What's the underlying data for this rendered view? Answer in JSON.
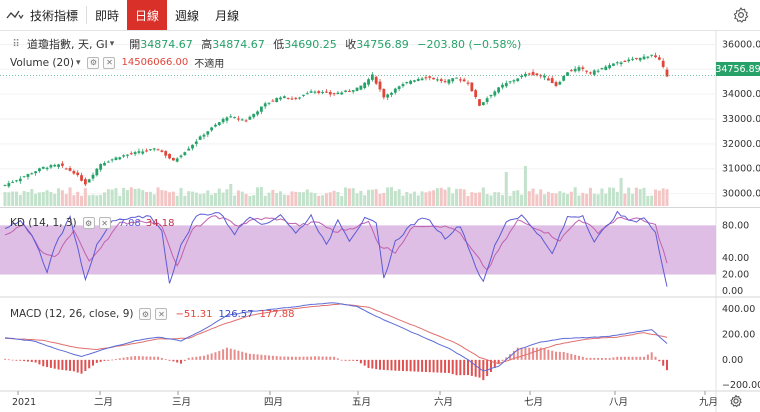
{
  "toolbar": {
    "indicator_label": "技術指標",
    "timeframes": [
      {
        "label": "即時",
        "active": false
      },
      {
        "label": "日線",
        "active": true
      },
      {
        "label": "週線",
        "active": false
      },
      {
        "label": "月線",
        "active": false
      }
    ]
  },
  "symbol": {
    "label": "道瓊指數, 天, GI",
    "open_label": "開",
    "open": "34874.67",
    "high_label": "高",
    "high": "34874.67",
    "low_label": "低",
    "low": "34690.25",
    "close_label": "收",
    "close": "34756.89",
    "change": "−203.80 (−0.58%)",
    "last_price_tag": "34756.89"
  },
  "volume": {
    "label": "Volume (20)",
    "value": "14506066.00",
    "ma_value": "不適用"
  },
  "kd": {
    "label": "KD (14, 1, 3)",
    "k": "7.08",
    "d": "34.18"
  },
  "macd": {
    "label": "MACD (12, 26, close, 9)",
    "hist": "−51.31",
    "macd": "126.57",
    "signal": "177.88"
  },
  "colors": {
    "up": "#26a269",
    "down": "#e0453a",
    "k_line": "#5b5bd6",
    "d_line": "#c060b0",
    "kd_band": "#d8b3e0",
    "macd_line": "#5b6bd6",
    "signal_line": "#e07070",
    "vol_up": "#bfe0c8",
    "vol_down": "#f3c2c2",
    "active_tab": "#d9302a"
  },
  "icons": {
    "indicator": "indicator-wave-icon",
    "settings": "gear-icon",
    "hide": "eye-icon",
    "remove": "close-icon"
  },
  "chart_data": {
    "type": "candlestick",
    "price_axis": {
      "ticks": [
        "36000.00",
        "35000.00",
        "34000.00",
        "33000.00",
        "32000.00",
        "31000.00",
        "30000.00"
      ],
      "range": [
        29500,
        36300
      ]
    },
    "kd_axis": {
      "ticks": [
        "80.00",
        "40.00",
        "20.00",
        "0.00"
      ],
      "range": [
        -5,
        100
      ],
      "band": [
        20,
        80
      ]
    },
    "macd_axis": {
      "ticks": [
        "400.00",
        "200.00",
        "0.00",
        "−200.00"
      ],
      "range": [
        -230,
        480
      ]
    },
    "time_axis": [
      "2021",
      "二月",
      "三月",
      "四月",
      "五月",
      "六月",
      "七月",
      "八月",
      "九月"
    ],
    "close_anchors": [
      [
        0,
        30350
      ],
      [
        5,
        30700
      ],
      [
        10,
        31050
      ],
      [
        14,
        31150
      ],
      [
        18,
        30850
      ],
      [
        21,
        30400
      ],
      [
        25,
        31200
      ],
      [
        30,
        31500
      ],
      [
        36,
        31700
      ],
      [
        40,
        31800
      ],
      [
        44,
        31300
      ],
      [
        47,
        31700
      ],
      [
        52,
        32400
      ],
      [
        58,
        33100
      ],
      [
        63,
        32950
      ],
      [
        68,
        33600
      ],
      [
        72,
        33900
      ],
      [
        76,
        33800
      ],
      [
        80,
        34150
      ],
      [
        85,
        34000
      ],
      [
        89,
        34100
      ],
      [
        93,
        34300
      ],
      [
        96,
        34750
      ],
      [
        99,
        33900
      ],
      [
        102,
        34200
      ],
      [
        106,
        34550
      ],
      [
        110,
        34700
      ],
      [
        115,
        34500
      ],
      [
        118,
        34650
      ],
      [
        121,
        34450
      ],
      [
        124,
        33550
      ],
      [
        127,
        34000
      ],
      [
        130,
        34350
      ],
      [
        134,
        34650
      ],
      [
        137,
        34850
      ],
      [
        141,
        34700
      ],
      [
        144,
        34350
      ],
      [
        147,
        34900
      ],
      [
        150,
        35050
      ],
      [
        153,
        34850
      ],
      [
        157,
        35100
      ],
      [
        161,
        35300
      ],
      [
        166,
        35450
      ],
      [
        169,
        35600
      ],
      [
        171,
        35350
      ],
      [
        173,
        34756
      ]
    ],
    "kd_k_anchors": [
      [
        0,
        75
      ],
      [
        4,
        86
      ],
      [
        8,
        60
      ],
      [
        11,
        22
      ],
      [
        13,
        55
      ],
      [
        17,
        90
      ],
      [
        21,
        15
      ],
      [
        24,
        55
      ],
      [
        28,
        85
      ],
      [
        33,
        88
      ],
      [
        38,
        92
      ],
      [
        41,
        72
      ],
      [
        43,
        10
      ],
      [
        46,
        55
      ],
      [
        50,
        92
      ],
      [
        56,
        96
      ],
      [
        60,
        70
      ],
      [
        64,
        92
      ],
      [
        68,
        80
      ],
      [
        72,
        94
      ],
      [
        76,
        70
      ],
      [
        80,
        92
      ],
      [
        84,
        55
      ],
      [
        87,
        88
      ],
      [
        90,
        62
      ],
      [
        94,
        88
      ],
      [
        97,
        82
      ],
      [
        99,
        15
      ],
      [
        102,
        60
      ],
      [
        106,
        80
      ],
      [
        110,
        90
      ],
      [
        115,
        65
      ],
      [
        119,
        80
      ],
      [
        123,
        30
      ],
      [
        125,
        10
      ],
      [
        128,
        55
      ],
      [
        131,
        85
      ],
      [
        135,
        92
      ],
      [
        139,
        72
      ],
      [
        143,
        45
      ],
      [
        147,
        90
      ],
      [
        151,
        92
      ],
      [
        154,
        60
      ],
      [
        157,
        78
      ],
      [
        160,
        95
      ],
      [
        164,
        84
      ],
      [
        167,
        90
      ],
      [
        170,
        70
      ],
      [
        173,
        7
      ]
    ],
    "kd_d_anchors": [
      [
        0,
        70
      ],
      [
        5,
        80
      ],
      [
        10,
        45
      ],
      [
        13,
        40
      ],
      [
        18,
        75
      ],
      [
        22,
        35
      ],
      [
        26,
        60
      ],
      [
        30,
        82
      ],
      [
        36,
        86
      ],
      [
        41,
        80
      ],
      [
        45,
        30
      ],
      [
        49,
        75
      ],
      [
        55,
        92
      ],
      [
        61,
        80
      ],
      [
        66,
        88
      ],
      [
        71,
        88
      ],
      [
        77,
        80
      ],
      [
        82,
        84
      ],
      [
        86,
        72
      ],
      [
        90,
        76
      ],
      [
        95,
        84
      ],
      [
        98,
        55
      ],
      [
        102,
        48
      ],
      [
        107,
        80
      ],
      [
        113,
        80
      ],
      [
        118,
        75
      ],
      [
        122,
        50
      ],
      [
        126,
        25
      ],
      [
        129,
        50
      ],
      [
        134,
        86
      ],
      [
        140,
        75
      ],
      [
        145,
        62
      ],
      [
        150,
        88
      ],
      [
        155,
        72
      ],
      [
        160,
        88
      ],
      [
        165,
        88
      ],
      [
        170,
        80
      ],
      [
        173,
        34
      ]
    ],
    "macd_anchors": [
      [
        0,
        175
      ],
      [
        8,
        145
      ],
      [
        14,
        80
      ],
      [
        20,
        25
      ],
      [
        26,
        85
      ],
      [
        34,
        150
      ],
      [
        40,
        180
      ],
      [
        46,
        150
      ],
      [
        52,
        240
      ],
      [
        58,
        350
      ],
      [
        64,
        380
      ],
      [
        70,
        400
      ],
      [
        76,
        420
      ],
      [
        81,
        440
      ],
      [
        86,
        450
      ],
      [
        92,
        420
      ],
      [
        98,
        330
      ],
      [
        104,
        250
      ],
      [
        110,
        170
      ],
      [
        116,
        90
      ],
      [
        121,
        0
      ],
      [
        125,
        -90
      ],
      [
        129,
        -50
      ],
      [
        134,
        80
      ],
      [
        140,
        140
      ],
      [
        146,
        170
      ],
      [
        152,
        175
      ],
      [
        158,
        185
      ],
      [
        164,
        215
      ],
      [
        169,
        240
      ],
      [
        173,
        127
      ]
    ],
    "signal_anchors": [
      [
        0,
        170
      ],
      [
        10,
        155
      ],
      [
        18,
        100
      ],
      [
        24,
        80
      ],
      [
        32,
        120
      ],
      [
        40,
        165
      ],
      [
        48,
        170
      ],
      [
        56,
        270
      ],
      [
        64,
        350
      ],
      [
        72,
        390
      ],
      [
        80,
        420
      ],
      [
        88,
        440
      ],
      [
        95,
        415
      ],
      [
        102,
        330
      ],
      [
        110,
        230
      ],
      [
        118,
        130
      ],
      [
        124,
        20
      ],
      [
        129,
        -30
      ],
      [
        136,
        40
      ],
      [
        144,
        120
      ],
      [
        152,
        165
      ],
      [
        160,
        180
      ],
      [
        167,
        215
      ],
      [
        173,
        178
      ]
    ]
  }
}
